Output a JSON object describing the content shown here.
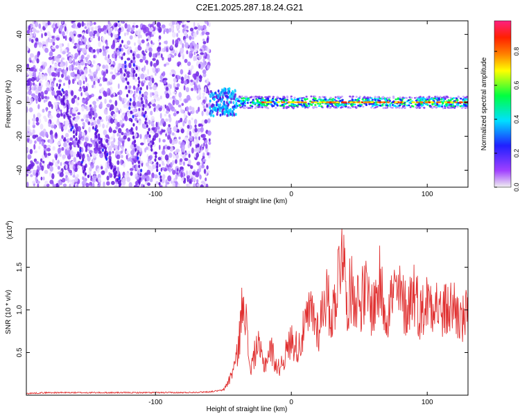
{
  "figure": {
    "title": "C2E1.2025.287.18.24.G21"
  },
  "chart_data": [
    {
      "type": "heatmap",
      "title": "C2E1.2025.287.18.24.G21",
      "xlabel": "Height of straight line (km)",
      "ylabel": "Frequency (Hz)",
      "xlim": [
        -195,
        130
      ],
      "ylim": [
        -50,
        48
      ],
      "x_ticks": [
        -100,
        0,
        100
      ],
      "x_tick_labels": [
        "-100",
        "0",
        "100"
      ],
      "y_ticks": [
        -40,
        -20,
        0,
        20,
        40
      ],
      "y_tick_labels": [
        "-40",
        "-20",
        "0",
        "20",
        "40"
      ],
      "colorbar": {
        "label": "Normalized spectral amplitude",
        "range": [
          0,
          0.98
        ],
        "ticks": [
          0.0,
          0.2,
          0.4,
          0.6,
          0.8
        ],
        "tick_labels": [
          "0.0",
          "0.2",
          "0.4",
          "0.6",
          "0.8"
        ],
        "colors": [
          "#f0f0f0",
          "#a040ff",
          "#2020ff",
          "#00e0ff",
          "#00ff40",
          "#ffff00",
          "#ff8000",
          "#ff2000",
          "#ff2080"
        ]
      },
      "features": {
        "noise_region_x": [
          -195,
          -60
        ],
        "transition_x": [
          -60,
          -40
        ],
        "signal_track_x": [
          -40,
          130
        ],
        "signal_track_frequency_hz": 0
      }
    },
    {
      "type": "line",
      "xlabel": "Height of straight line (km)",
      "ylabel": "SNR (10 * v/v)",
      "y_scale_label": "(x10",
      "y_scale_exponent": "4",
      "xlim": [
        -195,
        130
      ],
      "ylim": [
        0,
        1.95
      ],
      "x_ticks": [
        -100,
        0,
        100
      ],
      "x_tick_labels": [
        "-100",
        "0",
        "100"
      ],
      "y_ticks": [
        0.5,
        1.0,
        1.5
      ],
      "y_tick_labels": [
        "0.5",
        "1.0",
        "1.5"
      ],
      "line_color": "#e03030",
      "series": [
        {
          "x": [
            -195,
            -180,
            -160,
            -140,
            -120,
            -100,
            -80,
            -60,
            -50,
            -45,
            -40,
            -37,
            -35,
            -32,
            -30,
            -25,
            -20,
            -15,
            -10,
            -5,
            0,
            5,
            10,
            15,
            20,
            25,
            30,
            35,
            38,
            40,
            45,
            50,
            55,
            60,
            65,
            70,
            75,
            80,
            85,
            90,
            95,
            100,
            105,
            110,
            115,
            120,
            125,
            130
          ],
          "values": [
            0.02,
            0.03,
            0.03,
            0.03,
            0.03,
            0.03,
            0.03,
            0.04,
            0.06,
            0.2,
            0.45,
            0.85,
            1.3,
            0.55,
            0.3,
            0.6,
            0.35,
            0.55,
            0.3,
            0.45,
            0.65,
            0.55,
            0.8,
            1.0,
            0.75,
            1.2,
            0.9,
            1.45,
            1.95,
            1.1,
            1.25,
            1.1,
            1.2,
            1.0,
            1.3,
            0.95,
            1.2,
            1.15,
            1.0,
            1.25,
            0.95,
            1.1,
            1.15,
            0.95,
            1.0,
            1.05,
            0.85,
            0.95
          ]
        }
      ]
    }
  ]
}
